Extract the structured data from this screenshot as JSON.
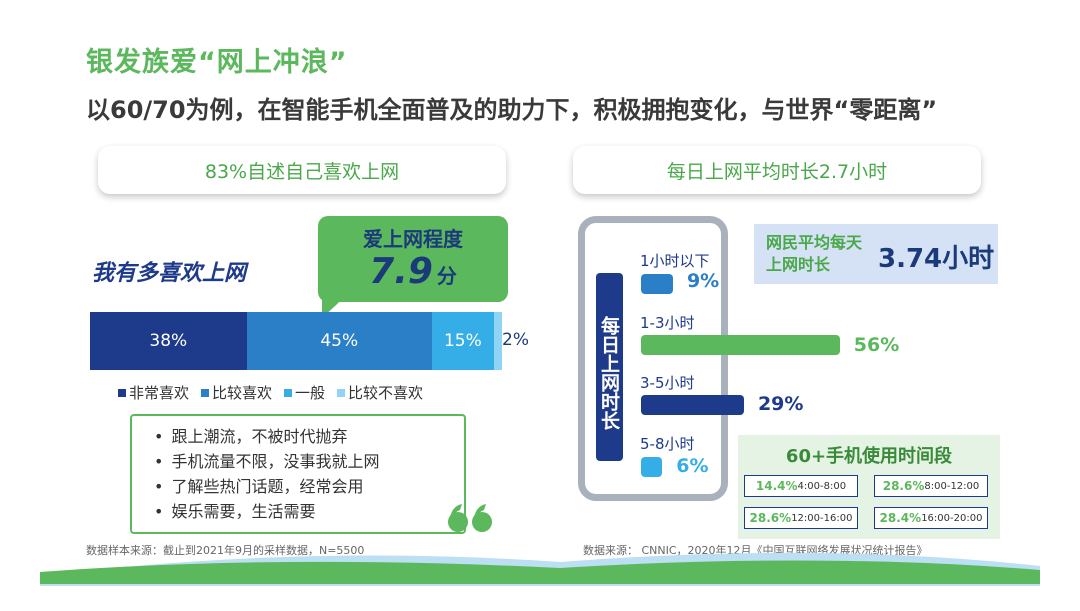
{
  "header": {
    "title": "银发族爱“网上冲浪”",
    "subtitle": "以60/70为例，在智能手机全面普及的助力下，积极拥抱变化，与世界“零距离”"
  },
  "left": {
    "banner": "83%自述自己喜欢上网",
    "question": "我有多喜欢上网",
    "bubble": {
      "title": "爱上网程度",
      "score": "7.9",
      "unit": "分"
    },
    "segments": [
      {
        "label": "38%",
        "value": 38,
        "color": "#1e3a8a"
      },
      {
        "label": "45%",
        "value": 45,
        "color": "#2a7fc7"
      },
      {
        "label": "15%",
        "value": 15,
        "color": "#35aee8"
      },
      {
        "label": "2%",
        "value": 2,
        "color": "#8fd3f5"
      }
    ],
    "legend": [
      {
        "label": "非常喜欢",
        "color": "#1e3a8a"
      },
      {
        "label": "比较喜欢",
        "color": "#2a7fc7"
      },
      {
        "label": "一般",
        "color": "#35aee8"
      },
      {
        "label": "比较不喜欢",
        "color": "#8fd3f5"
      }
    ],
    "reasons": [
      "跟上潮流，不被时代抛弃",
      "手机流量不限，没事我就上网",
      "了解些热门话题，经常会用",
      "娱乐需要，生活需要"
    ],
    "source": "数据样本来源：截止到2021年9月的采样数据，N=5500"
  },
  "right": {
    "banner": "每日上网平均时长2.7小时",
    "vertical_label": "每日上网时长",
    "durations": [
      {
        "label": "1小时以下",
        "pct": "9%",
        "value": 9,
        "color": "#2a7fc7",
        "valueColor": "#2a7fc7"
      },
      {
        "label": "1-3小时",
        "pct": "56%",
        "value": 56,
        "color": "#5cb85c",
        "valueColor": "#5cb85c"
      },
      {
        "label": "3-5小时",
        "pct": "29%",
        "value": 29,
        "color": "#1e3a8a",
        "valueColor": "#1e3a8a"
      },
      {
        "label": "5-8小时",
        "pct": "6%",
        "value": 6,
        "color": "#35aee8",
        "valueColor": "#35aee8"
      }
    ],
    "avg": {
      "label": "网民平均每天上网时长",
      "value": "3.74小时"
    },
    "time_title": "60+手机使用时间段",
    "time_slots": [
      {
        "pct": "14.4%",
        "range": "4:00-8:00"
      },
      {
        "pct": "28.6%",
        "range": "8:00-12:00"
      },
      {
        "pct": "28.6%",
        "range": "12:00-16:00"
      },
      {
        "pct": "28.4%",
        "range": "16:00-20:00"
      }
    ],
    "source": "数据来源： CNNIC，2020年12月《中国互联网络发展状况统计报告》"
  }
}
